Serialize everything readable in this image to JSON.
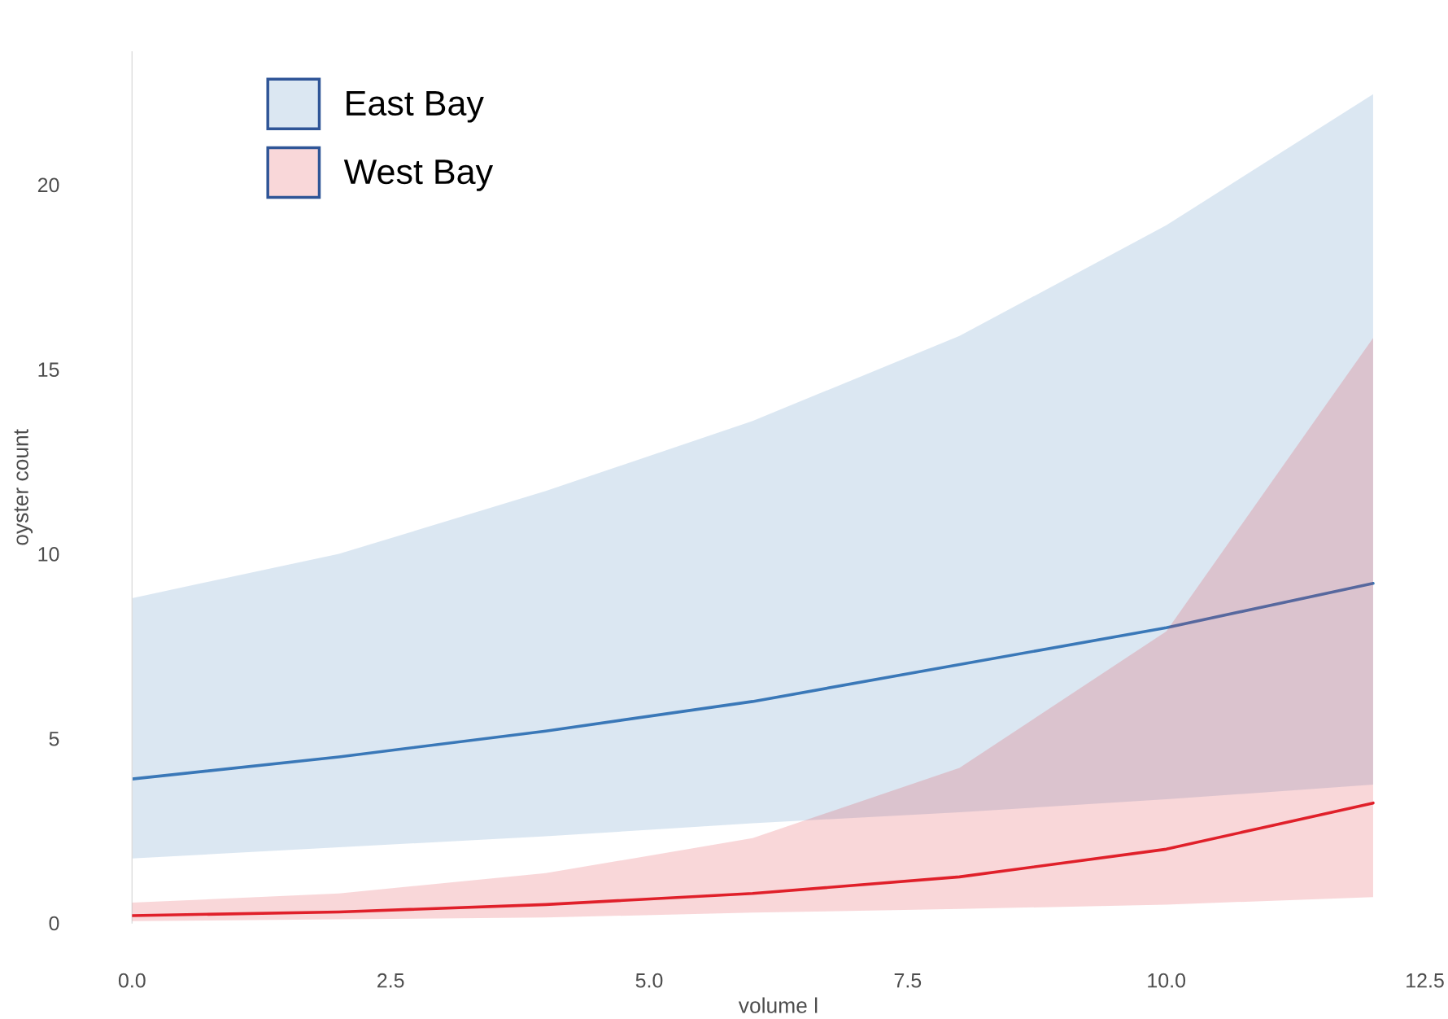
{
  "chart_data": {
    "type": "line",
    "xlabel": "volume l",
    "ylabel": "oyster count",
    "x": [
      0,
      2,
      4,
      6,
      8,
      10,
      12
    ],
    "series": [
      {
        "name": "East Bay",
        "color": "#3a78b8",
        "values": [
          3.9,
          4.5,
          5.2,
          6.0,
          7.0,
          8.0,
          9.2
        ],
        "lower": [
          1.75,
          2.05,
          2.35,
          2.7,
          3.0,
          3.35,
          3.75
        ],
        "upper": [
          8.8,
          10.0,
          11.7,
          13.6,
          15.9,
          18.9,
          22.45
        ]
      },
      {
        "name": "West Bay",
        "color": "#e0202a",
        "values": [
          0.2,
          0.3,
          0.5,
          0.8,
          1.25,
          2.0,
          3.25
        ],
        "lower": [
          0.05,
          0.1,
          0.15,
          0.28,
          0.38,
          0.5,
          0.7
        ],
        "upper": [
          0.55,
          0.8,
          1.35,
          2.3,
          4.2,
          7.9,
          15.85
        ]
      }
    ],
    "xlim": [
      0,
      12.5
    ],
    "ylim": [
      0,
      23.6
    ],
    "xticks": [
      {
        "value": 0,
        "label": "0.0"
      },
      {
        "value": 2.5,
        "label": "2.5"
      },
      {
        "value": 5,
        "label": "5.0"
      },
      {
        "value": 7.5,
        "label": "7.5"
      },
      {
        "value": 10,
        "label": "10.0"
      },
      {
        "value": 12.5,
        "label": "12.5"
      }
    ],
    "yticks": [
      0,
      5,
      10,
      15,
      20
    ],
    "legend": "top left",
    "marker": "none",
    "line_style": "solid"
  }
}
